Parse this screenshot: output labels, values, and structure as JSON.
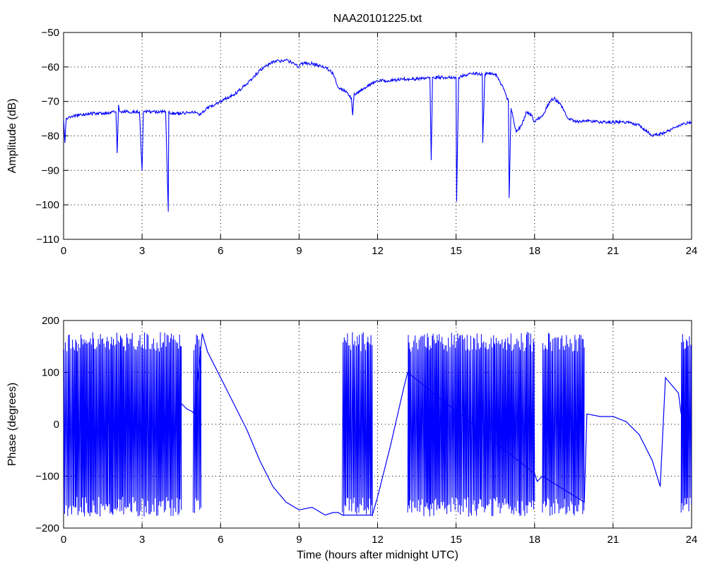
{
  "chart_data": [
    {
      "type": "line",
      "title": "NAA20101225.txt",
      "xlabel": "",
      "ylabel": "Amplitude (dB)",
      "xlim": [
        0,
        24
      ],
      "ylim": [
        -110,
        -50
      ],
      "xticks": [
        "0",
        "3",
        "6",
        "9",
        "12",
        "15",
        "18",
        "21",
        "24"
      ],
      "yticks": [
        "−110",
        "−100",
        "−90",
        "−80",
        "−70",
        "−60",
        "−50"
      ],
      "grid": true,
      "color": "#0000ff",
      "x": [
        0,
        0.05,
        0.1,
        0.5,
        1,
        1.5,
        2,
        2.05,
        2.1,
        2.15,
        2.2,
        2.5,
        2.9,
        3.0,
        3.05,
        3.1,
        3.5,
        3.9,
        4.0,
        4.02,
        4.1,
        4.5,
        5.0,
        5.2,
        5.5,
        6.0,
        6.5,
        7.0,
        7.5,
        8.0,
        8.5,
        8.8,
        9.0,
        9.1,
        9.5,
        10.0,
        10.3,
        10.5,
        10.8,
        11.0,
        11.05,
        11.1,
        11.5,
        12.0,
        12.5,
        13.0,
        13.5,
        14.0,
        14.05,
        14.1,
        14.5,
        15.0,
        15.02,
        15.1,
        15.5,
        15.9,
        16.0,
        16.02,
        16.1,
        16.5,
        16.8,
        17.0,
        17.03,
        17.1,
        17.3,
        17.5,
        17.7,
        17.9,
        18.0,
        18.3,
        18.6,
        18.75,
        19.0,
        19.3,
        19.6,
        20.0,
        20.5,
        21.0,
        21.5,
        22.0,
        22.5,
        23.0,
        23.5,
        24.0
      ],
      "y": [
        -75,
        -82,
        -75,
        -74,
        -73.5,
        -73.5,
        -73,
        -85,
        -71,
        -73,
        -73,
        -73,
        -73,
        -90,
        -73,
        -73,
        -73,
        -73,
        -102,
        -73,
        -73.5,
        -73.5,
        -73,
        -74,
        -72,
        -70,
        -68,
        -65,
        -61,
        -58.5,
        -58,
        -59,
        -60,
        -59,
        -59,
        -60,
        -62,
        -66,
        -67,
        -69,
        -74,
        -68,
        -66,
        -64,
        -64,
        -63.5,
        -63.5,
        -63,
        -87,
        -63,
        -63,
        -63,
        -99,
        -63,
        -62,
        -62,
        -62,
        -82,
        -62,
        -62,
        -66,
        -70,
        -98,
        -72,
        -79,
        -77,
        -73,
        -74,
        -76,
        -74,
        -70,
        -69,
        -71,
        -75,
        -76,
        -75.5,
        -76,
        -76,
        -76,
        -77,
        -80,
        -79,
        -77,
        -76
      ]
    },
    {
      "type": "line",
      "title": "",
      "xlabel": "Time (hours after midnight UTC)",
      "ylabel": "Phase (degrees)",
      "xlim": [
        0,
        24
      ],
      "ylim": [
        -200,
        200
      ],
      "xticks": [
        "0",
        "3",
        "6",
        "9",
        "12",
        "15",
        "18",
        "21",
        "24"
      ],
      "yticks": [
        "−200",
        "−100",
        "0",
        "100",
        "200"
      ],
      "grid": true,
      "color": "#0000ff",
      "wrapping_intervals": [
        [
          0,
          4.5
        ],
        [
          4.95,
          5.25
        ],
        [
          10.65,
          11.8
        ],
        [
          13.15,
          18.0
        ],
        [
          18.3,
          19.9
        ],
        [
          23.6,
          24.0
        ]
      ],
      "x": [
        4.5,
        4.7,
        4.9,
        5.0,
        5.3,
        5.5,
        6.0,
        6.5,
        7.0,
        7.5,
        8.0,
        8.5,
        9.0,
        9.5,
        10.0,
        10.3,
        10.5,
        10.65,
        11.8,
        12.0,
        12.5,
        13.0,
        13.15,
        18.0,
        18.1,
        18.3,
        19.9,
        20.0,
        20.5,
        21.0,
        21.5,
        22.0,
        22.5,
        22.8,
        23.0,
        23.5,
        23.6
      ],
      "y": [
        40,
        30,
        25,
        20,
        175,
        140,
        90,
        40,
        -10,
        -70,
        -120,
        -150,
        -165,
        -160,
        -175,
        -170,
        -170,
        -175,
        -175,
        -140,
        -40,
        70,
        100,
        -95,
        -110,
        -100,
        -150,
        20,
        15,
        15,
        5,
        -20,
        -70,
        -120,
        90,
        60,
        20
      ]
    }
  ]
}
